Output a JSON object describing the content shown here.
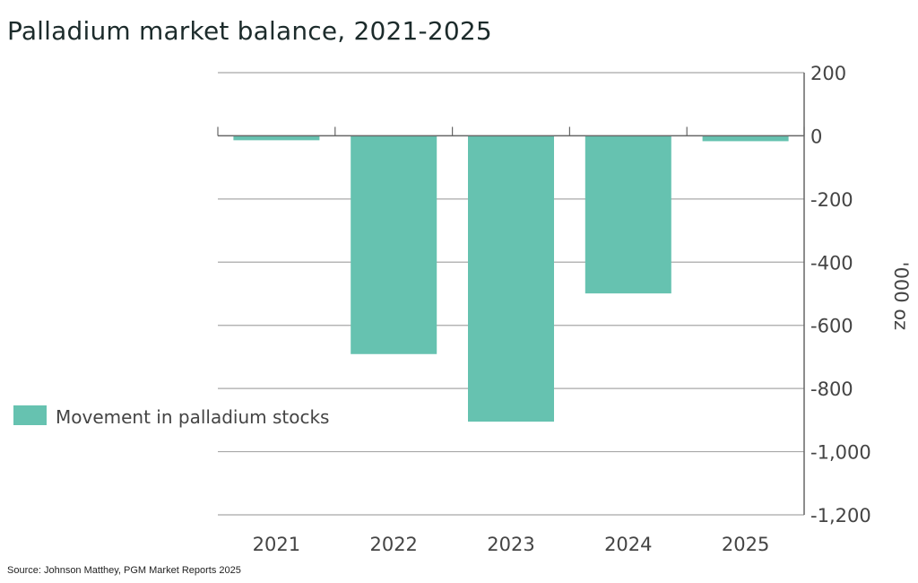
{
  "chart_data": {
    "type": "bar",
    "title": "Palladium market balance, 2021-2025",
    "categories": [
      "2021",
      "2022",
      "2023",
      "2024",
      "2025"
    ],
    "series": [
      {
        "name": "Movement in palladium stocks",
        "values": [
          -14,
          -691,
          -905,
          -499,
          -17
        ],
        "color": "#66c2b0"
      }
    ],
    "xlabel": "",
    "ylabel": "'000 oz",
    "ylim": [
      -1200,
      200
    ],
    "yticks": [
      200,
      0,
      -200,
      -400,
      -600,
      -800,
      -1000,
      -1200
    ],
    "ytick_labels": [
      "200",
      "0",
      "-200",
      "-400",
      "-600",
      "-800",
      "-1,000",
      "-1,200"
    ],
    "y_axis_side": "right",
    "grid": true,
    "legend_position": "left-middle",
    "source": "Source: Johnson Matthey, PGM Market Reports 2025"
  }
}
